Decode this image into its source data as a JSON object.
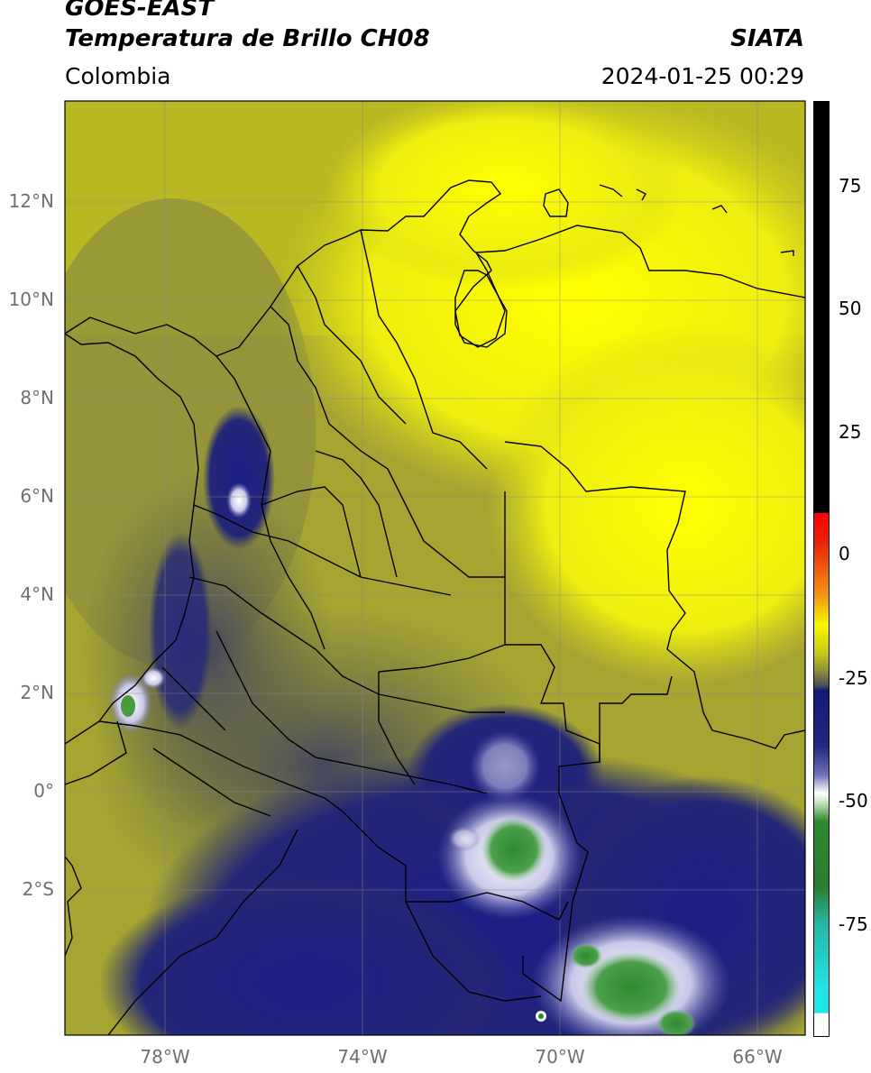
{
  "header": {
    "satellite": "GOES-EAST",
    "product": "Temperatura de Brillo CH08",
    "region": "Colombia",
    "agency": "SIATA",
    "datetime": "2024-01-25 00:29"
  },
  "map": {
    "lat_labels": [
      "12°N",
      "10°N",
      "8°N",
      "6°N",
      "4°N",
      "2°N",
      "0°",
      "2°S"
    ],
    "lon_labels": [
      "78°W",
      "74°W",
      "70°W",
      "66°W"
    ]
  },
  "colorbar": {
    "ticks": [
      "75",
      "50",
      "25",
      "0",
      "-25",
      "-50",
      "-75"
    ],
    "colors": {
      "black": "#000000",
      "red": "#e8200a",
      "orange": "#f39a12",
      "yellow": "#f7f700",
      "olive": "#a7a72a",
      "gray": "#555555",
      "navy": "#141a7a",
      "blue": "#3b3fa0",
      "white": "#ffffff",
      "green": "#2e8a2e",
      "teal": "#27b6a4",
      "cyan": "#1fe6e6"
    }
  }
}
